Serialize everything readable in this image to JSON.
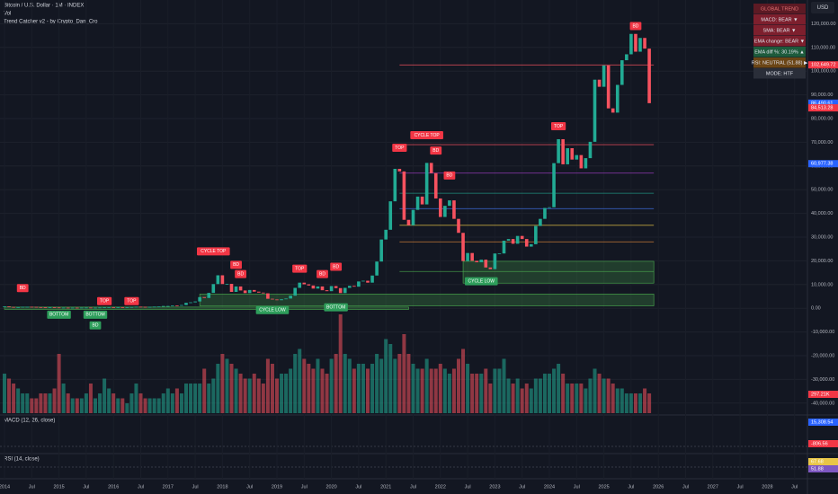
{
  "chart_data": {
    "type": "candlestick",
    "title": "Bitcoin / U.S. Dollar · 1M · INDEX",
    "volume_label": "Vol",
    "indicator_label": "Trend Catcher v2 - by Crypto_Dan_Cro",
    "macd_label": "MACD (12, 26, close)",
    "rsi_label": "RSI (14, close)",
    "currency": "USD",
    "start": "2014-01",
    "up_color": "#22ab94",
    "down_color": "#f7525f",
    "values": [
      800,
      550,
      450,
      450,
      630,
      640,
      590,
      480,
      390,
      340,
      380,
      320,
      220,
      250,
      240,
      240,
      230,
      260,
      280,
      230,
      240,
      310,
      380,
      430,
      370,
      440,
      420,
      450,
      530,
      670,
      620,
      570,
      610,
      700,
      740,
      960,
      970,
      1190,
      1080,
      1350,
      2300,
      2500,
      2870,
      4700,
      4340,
      6470,
      10200,
      13900,
      10200,
      10300,
      6900,
      9200,
      7500,
      6400,
      7700,
      7000,
      6600,
      6300,
      4000,
      3700,
      3400,
      3800,
      4100,
      5300,
      8600,
      10800,
      10100,
      9600,
      8300,
      9200,
      7600,
      7200,
      9350,
      8500,
      6400,
      8600,
      9450,
      9100,
      11300,
      11600,
      10800,
      13800,
      19700,
      29000,
      33100,
      45100,
      58800,
      57700,
      37300,
      35000,
      41500,
      47100,
      43800,
      61300,
      57000,
      46300,
      38500,
      43200,
      45500,
      37700,
      31800,
      19900,
      23300,
      20000,
      19400,
      20500,
      17200,
      16500,
      23100,
      23100,
      28500,
      29200,
      27200,
      30500,
      29200,
      26000,
      27000,
      34700,
      37700,
      42300,
      42600,
      61200,
      71300,
      60700,
      67500,
      62700,
      64600,
      59000,
      63300,
      70200,
      96400,
      93400,
      102400,
      84300,
      82500,
      94200,
      104600,
      107100,
      115700,
      108200,
      114000,
      109500,
      86490
    ],
    "volume": [
      40,
      35,
      30,
      25,
      20,
      20,
      15,
      15,
      20,
      20,
      20,
      25,
      60,
      30,
      20,
      15,
      15,
      15,
      20,
      30,
      15,
      20,
      35,
      25,
      20,
      15,
      15,
      10,
      20,
      30,
      20,
      15,
      15,
      15,
      15,
      20,
      25,
      20,
      25,
      20,
      30,
      30,
      30,
      30,
      45,
      30,
      35,
      50,
      60,
      55,
      50,
      45,
      40,
      35,
      35,
      40,
      35,
      30,
      55,
      50,
      35,
      40,
      40,
      45,
      60,
      65,
      55,
      50,
      45,
      55,
      45,
      40,
      55,
      60,
      100,
      60,
      55,
      45,
      50,
      50,
      45,
      50,
      60,
      55,
      75,
      70,
      55,
      60,
      80,
      60,
      50,
      45,
      45,
      55,
      45,
      45,
      50,
      45,
      40,
      45,
      55,
      65,
      50,
      40,
      40,
      40,
      45,
      30,
      45,
      45,
      55,
      35,
      30,
      35,
      25,
      30,
      25,
      35,
      35,
      40,
      40,
      45,
      50,
      40,
      30,
      30,
      30,
      30,
      25,
      35,
      45,
      40,
      35,
      35,
      30,
      25,
      25,
      20,
      20,
      20,
      20,
      25,
      20
    ],
    "volume_lim": [
      0,
      100
    ],
    "ylim": [
      -45000,
      130000
    ],
    "yticks": [
      {
        "value": 120000,
        "label": "120,000.00"
      },
      {
        "value": 110000,
        "label": "110,000.00"
      },
      {
        "value": 100000,
        "label": "100,000.00"
      },
      {
        "value": 90000,
        "label": "90,000.00"
      },
      {
        "value": 80000,
        "label": "80,000.00"
      },
      {
        "value": 70000,
        "label": "70,000.00"
      },
      {
        "value": 60000,
        "label": "60,000.00"
      },
      {
        "value": 50000,
        "label": "50,000.00"
      },
      {
        "value": 40000,
        "label": "40,000.00"
      },
      {
        "value": 30000,
        "label": "30,000.00"
      },
      {
        "value": 20000,
        "label": "20,000.00"
      },
      {
        "value": 10000,
        "label": "10,000.00"
      },
      {
        "value": 0,
        "label": "0.00"
      },
      {
        "value": -10000,
        "label": "-10,000.00"
      },
      {
        "value": -20000,
        "label": "-20,000.00"
      },
      {
        "value": -30000,
        "label": "-30,000.00"
      },
      {
        "value": -40000,
        "label": "-40,000.00"
      }
    ],
    "xticks": [
      {
        "value": "2014-01",
        "label": "2014"
      },
      {
        "value": "2014-07",
        "label": "Jul"
      },
      {
        "value": "2015-01",
        "label": "2015"
      },
      {
        "value": "2015-07",
        "label": "Jul"
      },
      {
        "value": "2016-01",
        "label": "2016"
      },
      {
        "value": "2016-07",
        "label": "Jul"
      },
      {
        "value": "2017-01",
        "label": "2017"
      },
      {
        "value": "2017-07",
        "label": "Jul"
      },
      {
        "value": "2018-01",
        "label": "2018"
      },
      {
        "value": "2018-07",
        "label": "Jul"
      },
      {
        "value": "2019-01",
        "label": "2019"
      },
      {
        "value": "2019-07",
        "label": "Jul"
      },
      {
        "value": "2020-01",
        "label": "2020"
      },
      {
        "value": "2020-07",
        "label": "Jul"
      },
      {
        "value": "2021-01",
        "label": "2021"
      },
      {
        "value": "2021-07",
        "label": "Jul"
      },
      {
        "value": "2022-01",
        "label": "2022"
      },
      {
        "value": "2022-07",
        "label": "Jul"
      },
      {
        "value": "2023-01",
        "label": "2023"
      },
      {
        "value": "2023-07",
        "label": "Jul"
      },
      {
        "value": "2024-01",
        "label": "2024"
      },
      {
        "value": "2024-07",
        "label": "Jul"
      },
      {
        "value": "2025-01",
        "label": "2025"
      },
      {
        "value": "2025-07",
        "label": "Jul"
      },
      {
        "value": "2026-01",
        "label": "2026"
      },
      {
        "value": "2026-07",
        "label": "Jul"
      },
      {
        "value": "2027-01",
        "label": "2027"
      },
      {
        "value": "2027-07",
        "label": "Jul"
      },
      {
        "value": "2028-01",
        "label": "2028"
      },
      {
        "value": "2028-07",
        "label": "Jul"
      }
    ],
    "grid": true,
    "levels": [
      {
        "value": 102600,
        "from": "2021-04",
        "to": "2025-12",
        "color": "#f7525f"
      },
      {
        "value": 69000,
        "from": "2021-04",
        "to": "2025-12",
        "color": "#f7525f"
      },
      {
        "value": 57000,
        "from": "2021-04",
        "to": "2025-12",
        "color": "#b042d8"
      },
      {
        "value": 48500,
        "from": "2021-04",
        "to": "2025-12",
        "color": "#22ab94"
      },
      {
        "value": 42000,
        "from": "2021-04",
        "to": "2025-12",
        "color": "#3f6fe0"
      },
      {
        "value": 35000,
        "from": "2021-04",
        "to": "2025-12",
        "color": "#e8c547"
      },
      {
        "value": 28000,
        "from": "2021-04",
        "to": "2025-12",
        "color": "#f0903a"
      },
      {
        "value": 15500,
        "from": "2021-04",
        "to": "2025-12",
        "color": "#4caf50"
      }
    ],
    "zones": [
      {
        "from": "2022-06",
        "to": "2025-12",
        "low": 10600,
        "high": 19800
      },
      {
        "from": "2017-08",
        "to": "2025-12",
        "low": 1000,
        "high": 6000
      },
      {
        "from": "2014-01",
        "to": "2021-06",
        "low": -500,
        "high": 500
      }
    ],
    "annotations": [
      {
        "text": "BD",
        "x": "2014-05",
        "y": 8500,
        "color": "#f23645"
      },
      {
        "text": "BOTTOM",
        "x": "2015-01",
        "y": -2700,
        "color": "#2e9e5b"
      },
      {
        "text": "BOTTOM",
        "x": "2015-09",
        "y": -2700,
        "color": "#2e9e5b"
      },
      {
        "text": "BD",
        "x": "2015-09",
        "y": -7200,
        "color": "#2e9e5b"
      },
      {
        "text": "TOP",
        "x": "2015-11",
        "y": 3000,
        "color": "#f23645"
      },
      {
        "text": "TOP",
        "x": "2016-05",
        "y": 3000,
        "color": "#f23645"
      },
      {
        "text": "CYCLE TOP",
        "x": "2017-11",
        "y": 24000,
        "color": "#f23645"
      },
      {
        "text": "BD",
        "x": "2018-04",
        "y": 18300,
        "color": "#f23645"
      },
      {
        "text": "BD",
        "x": "2018-05",
        "y": 14400,
        "color": "#f23645"
      },
      {
        "text": "CYCLE LOW",
        "x": "2018-12",
        "y": -800,
        "color": "#2e9e5b"
      },
      {
        "text": "TOP",
        "x": "2019-06",
        "y": 16700,
        "color": "#f23645"
      },
      {
        "text": "BD",
        "x": "2019-11",
        "y": 14400,
        "color": "#f23645"
      },
      {
        "text": "BD",
        "x": "2020-02",
        "y": 17500,
        "color": "#f23645"
      },
      {
        "text": "BOTTOM",
        "x": "2020-02",
        "y": 400,
        "color": "#2e9e5b"
      },
      {
        "text": "TOP",
        "x": "2021-04",
        "y": 67700,
        "color": "#f23645"
      },
      {
        "text": "CYCLE TOP",
        "x": "2021-10",
        "y": 73000,
        "color": "#f23645"
      },
      {
        "text": "BD",
        "x": "2021-12",
        "y": 66500,
        "color": "#f23645"
      },
      {
        "text": "BD",
        "x": "2022-03",
        "y": 56000,
        "color": "#f23645"
      },
      {
        "text": "CYCLE LOW",
        "x": "2022-10",
        "y": 11400,
        "color": "#2e9e5b"
      },
      {
        "text": "TOP",
        "x": "2024-03",
        "y": 76800,
        "color": "#f23645"
      },
      {
        "text": "BD",
        "x": "2025-08",
        "y": 119000,
        "color": "#f23645"
      }
    ],
    "price_tags": [
      {
        "label": "102,649.72",
        "value": 102649.72,
        "color": "#f23645"
      },
      {
        "label": "86,490.61",
        "value": 86490.61,
        "color": "#2962ff"
      },
      {
        "label": "84,513.28",
        "value": 84513.28,
        "color": "#f23645"
      },
      {
        "label": "60,977.38",
        "value": 60977.38,
        "color": "#2962ff"
      }
    ],
    "panel_tags": [
      {
        "label": "297.21K",
        "color": "#f23645"
      },
      {
        "label": "15,308.54",
        "color": "#2962ff"
      },
      {
        "label": "-806.56",
        "color": "#f23645"
      },
      {
        "label": "67.68",
        "color": "#e8c547"
      },
      {
        "label": "51.88",
        "color": "#7e57c2"
      }
    ],
    "trend_table": [
      {
        "text": "GLOBAL TREND",
        "color": "#5c1a24"
      },
      {
        "text": "MACD: BEAR ▼",
        "color": "#7d1f2d"
      },
      {
        "text": "SMA: BEAR ▼",
        "color": "#7d1f2d"
      },
      {
        "text": "EMA change: BEAR ▼",
        "color": "#7d1f2d"
      },
      {
        "text": "EMA diff %: 30.19% ▲",
        "color": "#1d5b3c"
      },
      {
        "text": "RSI: NEUTRAL (51.88) ▶",
        "color": "#6b4515"
      },
      {
        "text": "MODE: HTF",
        "color": "#2a2e39"
      }
    ]
  }
}
